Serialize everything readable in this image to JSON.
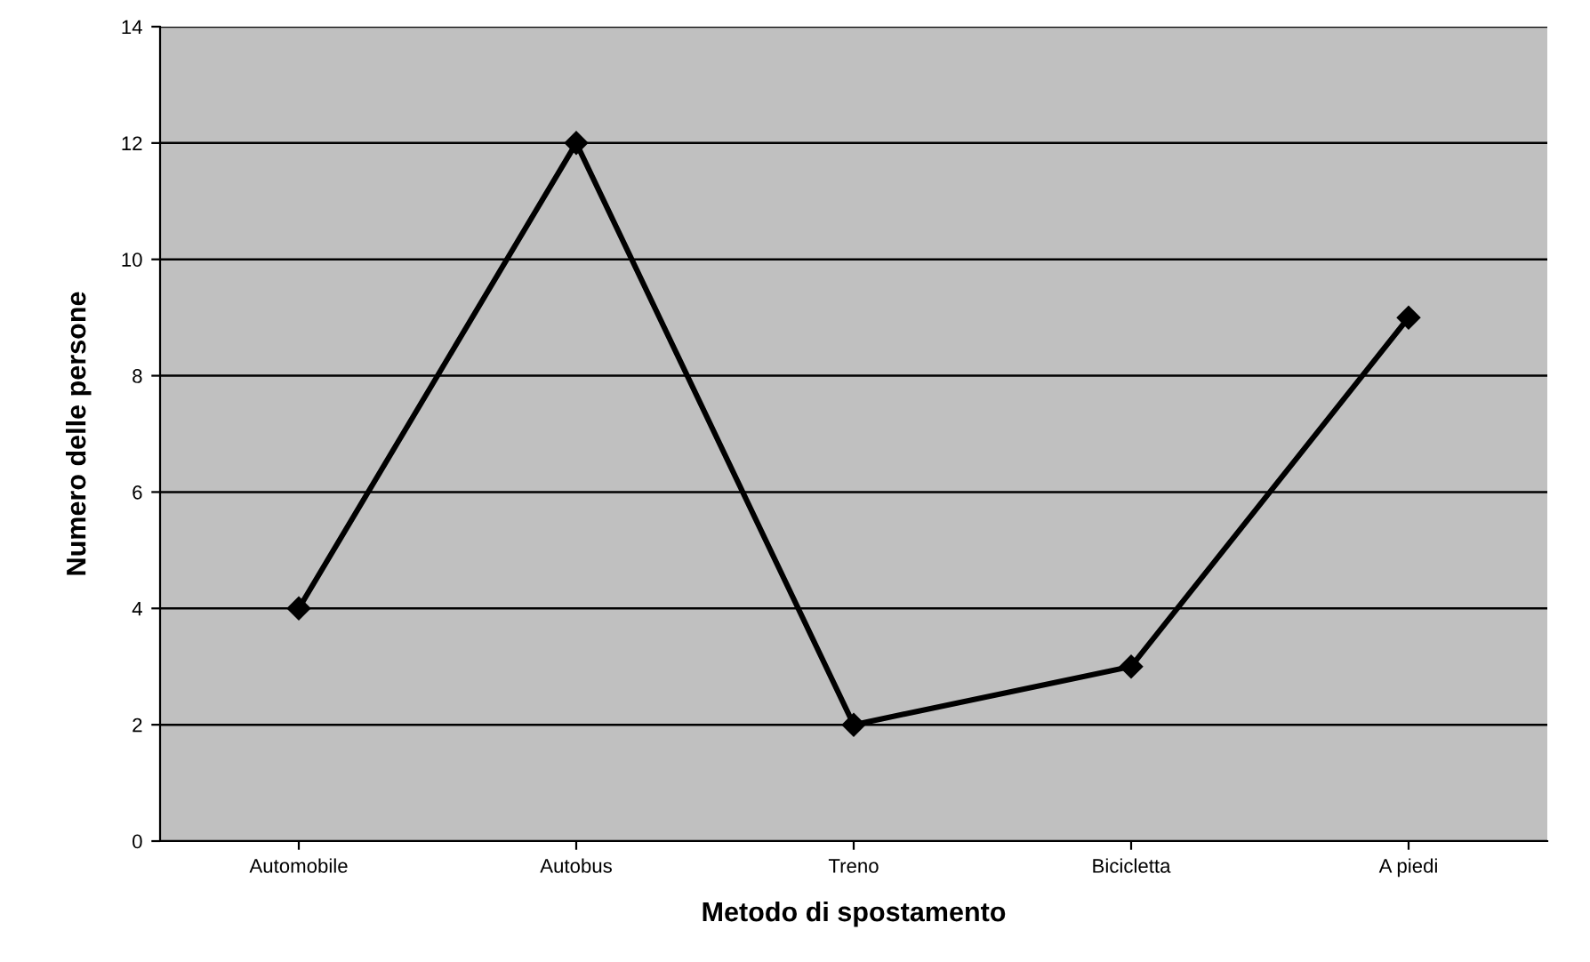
{
  "chart_data": {
    "type": "line",
    "xlabel": "Metodo di spostamento",
    "ylabel": "Numero delle persone",
    "categories": [
      "Automobile",
      "Autobus",
      "Treno",
      "Bicicletta",
      "A piedi"
    ],
    "series": [
      {
        "color": "#000000",
        "values": [
          4,
          12,
          2,
          3,
          9
        ]
      }
    ],
    "ylim": [
      0,
      14
    ],
    "yticks": [
      0,
      2,
      4,
      6,
      8,
      10,
      12,
      14
    ],
    "grid": "y",
    "marker": "diamond",
    "line_style": "solid",
    "legend": false
  }
}
